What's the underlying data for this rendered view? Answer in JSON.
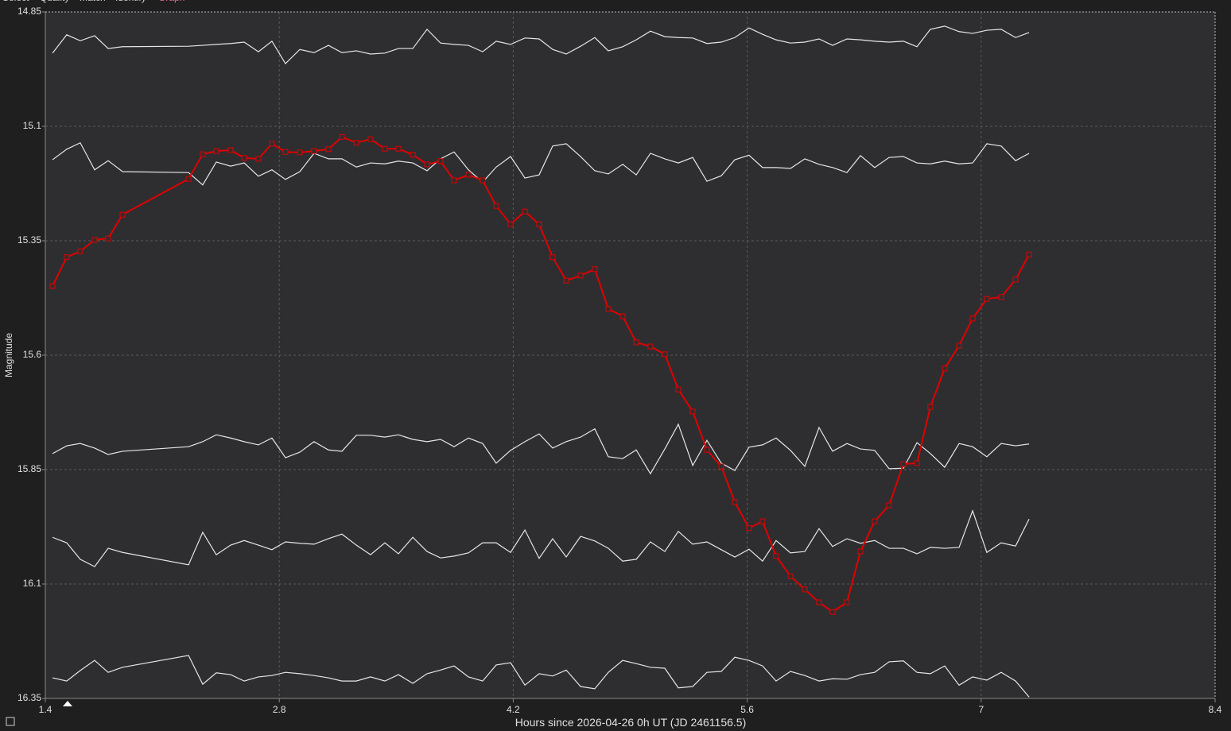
{
  "tabs": [
    "Select",
    "Quality",
    "Match",
    "Identify",
    "Graph"
  ],
  "active_tab": 4,
  "chart_data": {
    "type": "line",
    "ylabel": "Magnitude",
    "xlabel": "Hours since 2026-04-26 0h UT (JD 2461156.5)",
    "xlim": [
      1.4,
      8.4
    ],
    "xticks": [
      1.4,
      2.8,
      4.2,
      5.6,
      7,
      8.4
    ],
    "ylim": [
      14.85,
      16.35
    ],
    "yticks": [
      14.85,
      15.1,
      15.35,
      15.6,
      15.85,
      16.1,
      16.35
    ],
    "y_inverted": true,
    "grid": true,
    "x": [
      1.443,
      1.528,
      1.609,
      1.695,
      1.776,
      1.862,
      2.257,
      2.342,
      2.423,
      2.509,
      2.59,
      2.675,
      2.756,
      2.837,
      2.923,
      3.008,
      3.094,
      3.175,
      3.261,
      3.346,
      3.432,
      3.513,
      3.599,
      3.684,
      3.765,
      3.846,
      3.932,
      4.017,
      4.098,
      4.184,
      4.27,
      4.355,
      4.436,
      4.517,
      4.603,
      4.688,
      4.769,
      4.855,
      4.936,
      5.021,
      5.107,
      5.188,
      5.274,
      5.359,
      5.445,
      5.526,
      5.611,
      5.692,
      5.773,
      5.859,
      5.945,
      6.03,
      6.111,
      6.197,
      6.278,
      6.363,
      6.449,
      6.535,
      6.616,
      6.696,
      6.782,
      6.868,
      6.949,
      7.034,
      7.12,
      7.206,
      7.287
    ],
    "series": [
      {
        "color": "#e00000",
        "marker": "square",
        "values": [
          15.449,
          15.386,
          15.373,
          15.348,
          15.345,
          15.293,
          15.215,
          15.161,
          15.154,
          15.152,
          15.169,
          15.171,
          15.138,
          15.156,
          15.157,
          15.154,
          15.15,
          15.123,
          15.136,
          15.128,
          15.149,
          15.149,
          15.162,
          15.183,
          15.176,
          15.218,
          15.206,
          15.218,
          15.274,
          15.314,
          15.286,
          15.314,
          15.386,
          15.437,
          15.426,
          15.412,
          15.499,
          15.515,
          15.572,
          15.581,
          15.598,
          15.675,
          15.723,
          15.807,
          15.843,
          15.921,
          15.978,
          15.963,
          16.039,
          16.083,
          16.112,
          16.14,
          16.161,
          16.14,
          16.029,
          15.963,
          15.928,
          15.838,
          15.836,
          15.713,
          15.629,
          15.579,
          15.52,
          15.477,
          15.473,
          15.435,
          15.38
        ]
      },
      {
        "color": "#e6e6e6",
        "values": [
          14.94,
          14.9,
          14.913,
          14.902,
          14.93,
          14.926,
          14.925,
          14.923,
          14.921,
          14.919,
          14.916,
          14.937,
          14.914,
          14.963,
          14.932,
          14.939,
          14.923,
          14.939,
          14.935,
          14.942,
          14.94,
          14.93,
          14.93,
          14.888,
          14.918,
          14.921,
          14.923,
          14.937,
          14.914,
          14.921,
          14.907,
          14.909,
          14.932,
          14.942,
          14.925,
          14.906,
          14.935,
          14.926,
          14.911,
          14.892,
          14.904,
          14.906,
          14.907,
          14.919,
          14.916,
          14.906,
          14.885,
          14.899,
          14.911,
          14.918,
          14.916,
          14.909,
          14.923,
          14.909,
          14.911,
          14.914,
          14.916,
          14.914,
          14.926,
          14.888,
          14.881,
          14.893,
          14.897,
          14.89,
          14.888,
          14.906,
          14.895
        ]
      },
      {
        "color": "#e6e6e6",
        "values": [
          15.173,
          15.15,
          15.136,
          15.195,
          15.175,
          15.199,
          15.201,
          15.228,
          15.178,
          15.187,
          15.18,
          15.209,
          15.195,
          15.216,
          15.199,
          15.159,
          15.171,
          15.171,
          15.189,
          15.18,
          15.182,
          15.176,
          15.18,
          15.197,
          15.171,
          15.156,
          15.195,
          15.222,
          15.189,
          15.166,
          15.213,
          15.206,
          15.143,
          15.138,
          15.166,
          15.197,
          15.204,
          15.183,
          15.206,
          15.159,
          15.171,
          15.18,
          15.168,
          15.22,
          15.208,
          15.173,
          15.163,
          15.19,
          15.19,
          15.192,
          15.171,
          15.183,
          15.19,
          15.201,
          15.164,
          15.19,
          15.168,
          15.166,
          15.18,
          15.182,
          15.176,
          15.182,
          15.18,
          15.138,
          15.143,
          15.175,
          15.159
        ]
      },
      {
        "color": "#e6e6e6",
        "values": [
          15.815,
          15.798,
          15.793,
          15.803,
          15.817,
          15.81,
          15.8,
          15.789,
          15.774,
          15.781,
          15.789,
          15.796,
          15.781,
          15.824,
          15.812,
          15.789,
          15.807,
          15.81,
          15.775,
          15.775,
          15.779,
          15.774,
          15.784,
          15.789,
          15.784,
          15.8,
          15.781,
          15.793,
          15.836,
          15.808,
          15.789,
          15.772,
          15.803,
          15.789,
          15.779,
          15.761,
          15.822,
          15.826,
          15.807,
          15.859,
          15.805,
          15.751,
          15.841,
          15.786,
          15.836,
          15.852,
          15.801,
          15.796,
          15.781,
          15.808,
          15.843,
          15.758,
          15.81,
          15.793,
          15.805,
          15.808,
          15.848,
          15.847,
          15.791,
          15.815,
          15.845,
          15.793,
          15.8,
          15.822,
          15.793,
          15.798,
          15.794
        ]
      },
      {
        "color": "#e6e6e6",
        "values": [
          15.998,
          16.01,
          16.046,
          16.062,
          16.022,
          16.031,
          16.058,
          15.987,
          16.036,
          16.015,
          16.005,
          16.015,
          16.025,
          16.008,
          16.011,
          16.013,
          16.001,
          15.991,
          16.015,
          16.036,
          16.01,
          16.034,
          15.998,
          16.029,
          16.043,
          16.039,
          16.032,
          16.01,
          16.01,
          16.031,
          15.982,
          16.044,
          16.001,
          16.041,
          15.996,
          16.006,
          16.022,
          16.05,
          16.046,
          16.008,
          16.029,
          15.985,
          16.013,
          16.008,
          16.025,
          16.041,
          16.024,
          16.05,
          16.005,
          16.032,
          16.029,
          15.979,
          16.018,
          16.001,
          16.011,
          16.005,
          16.022,
          16.022,
          16.034,
          16.02,
          16.022,
          16.02,
          15.94,
          16.031,
          16.01,
          16.017,
          15.958
        ]
      },
      {
        "color": "#e6e6e6",
        "values": [
          16.305,
          16.312,
          16.289,
          16.267,
          16.293,
          16.282,
          16.256,
          16.319,
          16.294,
          16.298,
          16.312,
          16.303,
          16.3,
          16.293,
          16.296,
          16.3,
          16.305,
          16.312,
          16.312,
          16.303,
          16.312,
          16.298,
          16.317,
          16.296,
          16.288,
          16.279,
          16.303,
          16.312,
          16.277,
          16.272,
          16.321,
          16.296,
          16.301,
          16.288,
          16.324,
          16.329,
          16.293,
          16.267,
          16.274,
          16.282,
          16.284,
          16.327,
          16.324,
          16.293,
          16.291,
          16.26,
          16.267,
          16.279,
          16.312,
          16.291,
          16.3,
          16.312,
          16.307,
          16.308,
          16.298,
          16.293,
          16.27,
          16.268,
          16.293,
          16.296,
          16.279,
          16.321,
          16.303,
          16.31,
          16.293,
          16.312,
          16.347
        ]
      }
    ]
  }
}
